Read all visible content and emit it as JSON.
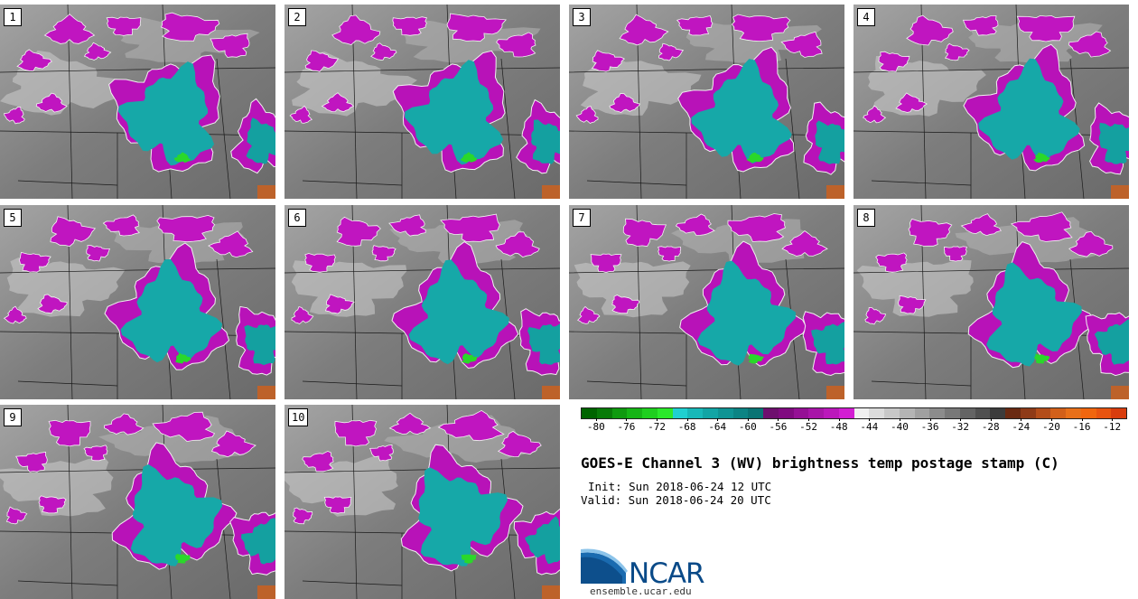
{
  "panels": [
    {
      "label": "1"
    },
    {
      "label": "2"
    },
    {
      "label": "3"
    },
    {
      "label": "4"
    },
    {
      "label": "5"
    },
    {
      "label": "6"
    },
    {
      "label": "7"
    },
    {
      "label": "8"
    },
    {
      "label": "9"
    },
    {
      "label": "10"
    }
  ],
  "colorbar": {
    "colors": [
      "#006400",
      "#087a08",
      "#0f9a0f",
      "#16b516",
      "#1fcf1f",
      "#2be82b",
      "#1fd0d0",
      "#18b8b8",
      "#12a5a5",
      "#0f9494",
      "#0c8484",
      "#0a7474",
      "#6e0f6e",
      "#800a80",
      "#951095",
      "#a815a8",
      "#bb18bb",
      "#d21ed2",
      "#f0f0f0",
      "#dcdcdc",
      "#c8c8c8",
      "#b4b4b4",
      "#a0a0a0",
      "#8c8c8c",
      "#787878",
      "#646464",
      "#505050",
      "#3c3c3c",
      "#6a2a12",
      "#8e3b18",
      "#b34d1a",
      "#d2601a",
      "#e8701a",
      "#f0660f",
      "#e85410",
      "#d83d0e"
    ],
    "ticks": [
      "-80",
      "-76",
      "-72",
      "-68",
      "-64",
      "-60",
      "-56",
      "-52",
      "-48",
      "-44",
      "-40",
      "-36",
      "-32",
      "-28",
      "-24",
      "-20",
      "-16",
      "-12"
    ],
    "min": -82,
    "max": -10
  },
  "title": "GOES-E Channel 3 (WV) brightness temp postage stamp (C)",
  "init_line": "Init: Sun 2018-06-24 12 UTC",
  "valid_line": "Valid: Sun 2018-06-24 20 UTC",
  "logo": {
    "text": "NCAR",
    "url": "ensemble.ucar.edu"
  }
}
